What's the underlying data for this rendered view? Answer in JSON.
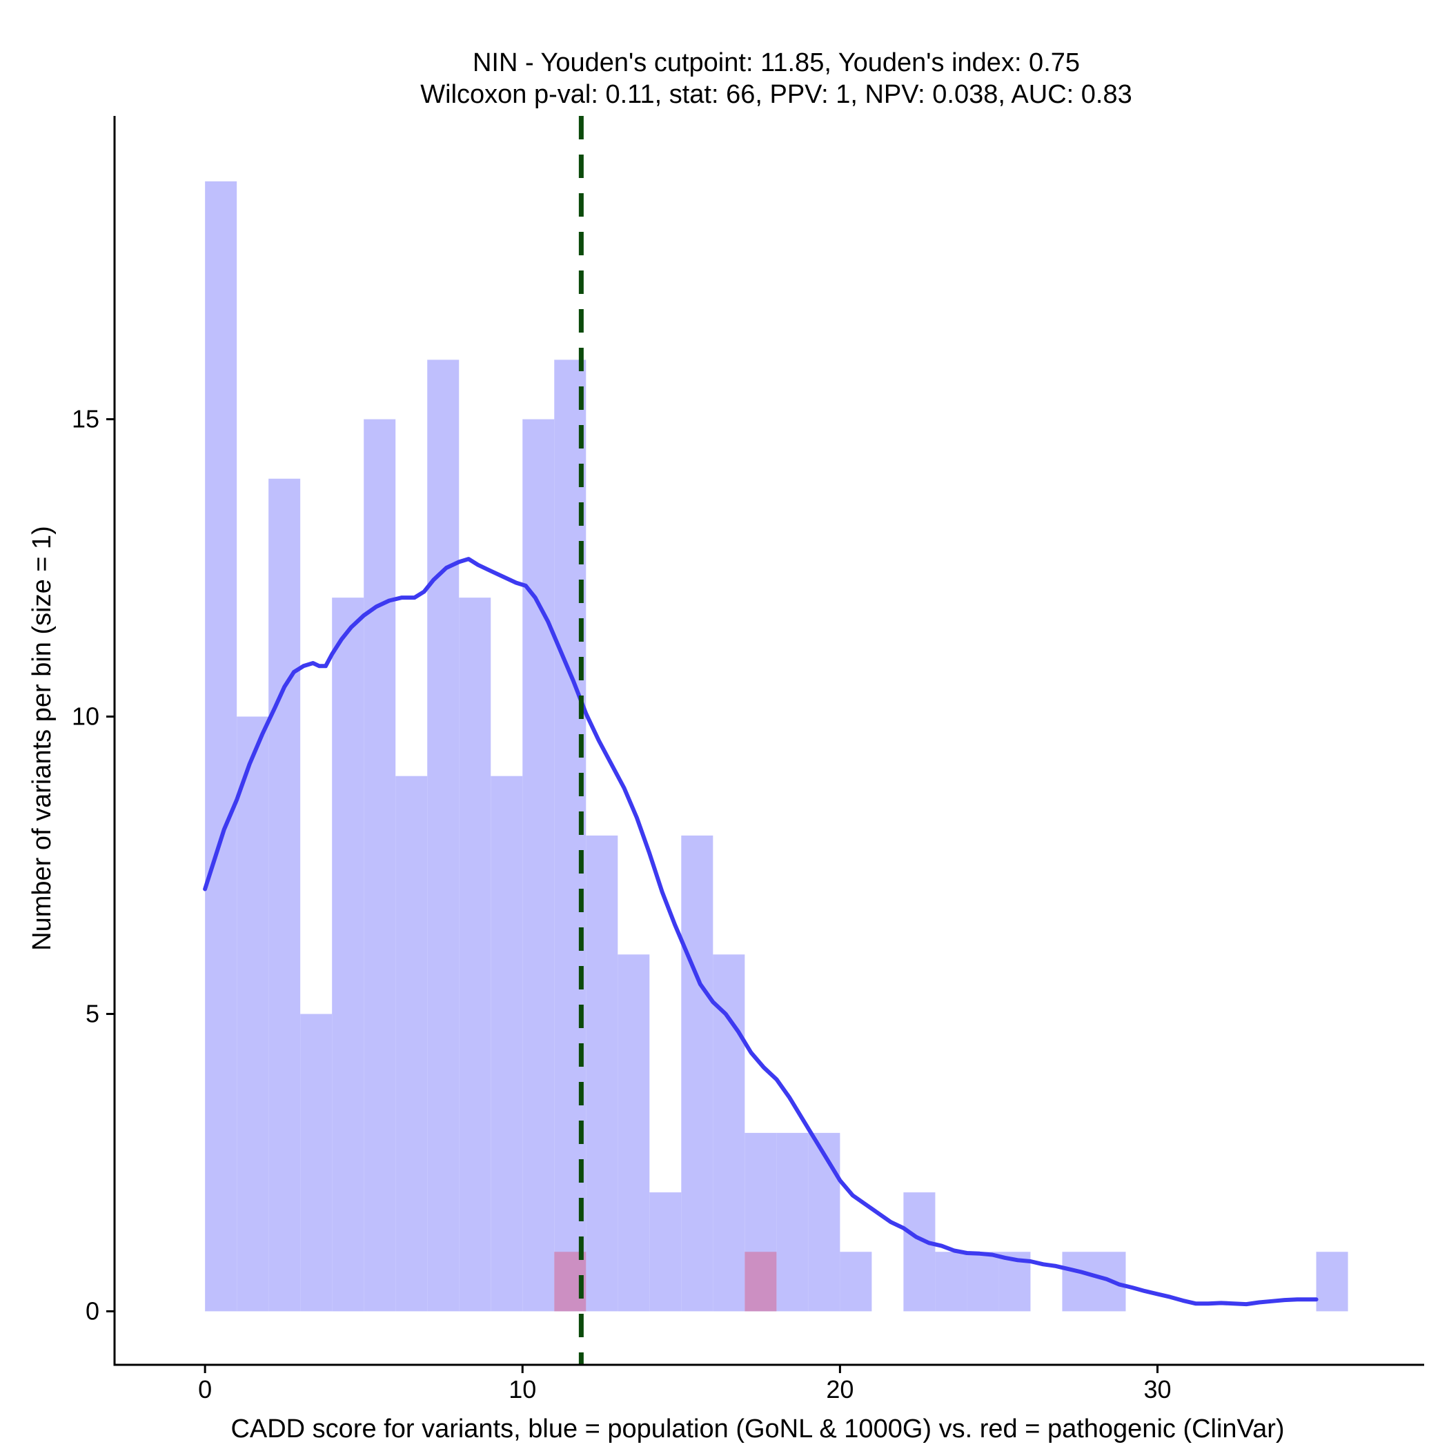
{
  "chart_data": {
    "type": "bar",
    "title_line1": "NIN - Youden's cutpoint: 11.85, Youden's index: 0.75",
    "title_line2": "Wilcoxon p-val: 0.11, stat: 66, PPV: 1, NPV: 0.038, AUC: 0.83",
    "xlabel": "CADD score for variants, blue = population (GoNL & 1000G) vs. red = pathogenic (ClinVar)",
    "ylabel": "Number of variants per bin (size = 1)",
    "xlim": [
      -2.85,
      38.4
    ],
    "ylim": [
      -0.9,
      20.1
    ],
    "x_ticks": [
      0,
      10,
      20,
      30
    ],
    "y_ticks": [
      0,
      5,
      10,
      15
    ],
    "bin_size": 1,
    "cutpoint": 11.85,
    "series": [
      {
        "name": "population (GoNL & 1000G)",
        "color": "#bfbffd",
        "bins": [
          {
            "x": 0,
            "count": 19
          },
          {
            "x": 1,
            "count": 10
          },
          {
            "x": 2,
            "count": 14
          },
          {
            "x": 3,
            "count": 5
          },
          {
            "x": 4,
            "count": 12
          },
          {
            "x": 5,
            "count": 15
          },
          {
            "x": 6,
            "count": 9
          },
          {
            "x": 7,
            "count": 16
          },
          {
            "x": 8,
            "count": 12
          },
          {
            "x": 9,
            "count": 9
          },
          {
            "x": 10,
            "count": 15
          },
          {
            "x": 11,
            "count": 16
          },
          {
            "x": 12,
            "count": 8
          },
          {
            "x": 13,
            "count": 6
          },
          {
            "x": 14,
            "count": 2
          },
          {
            "x": 15,
            "count": 8
          },
          {
            "x": 16,
            "count": 6
          },
          {
            "x": 17,
            "count": 3
          },
          {
            "x": 18,
            "count": 3
          },
          {
            "x": 19,
            "count": 3
          },
          {
            "x": 20,
            "count": 1
          },
          {
            "x": 22,
            "count": 2
          },
          {
            "x": 23,
            "count": 1
          },
          {
            "x": 24,
            "count": 1
          },
          {
            "x": 25,
            "count": 1
          },
          {
            "x": 27,
            "count": 1
          },
          {
            "x": 28,
            "count": 1
          },
          {
            "x": 35,
            "count": 1
          }
        ]
      },
      {
        "name": "pathogenic (ClinVar)",
        "color": "#cc8fc2",
        "bins": [
          {
            "x": 11,
            "count": 1
          },
          {
            "x": 17,
            "count": 1
          }
        ]
      }
    ],
    "density": {
      "name": "population density",
      "color": "#3d3af0",
      "points": [
        [
          0,
          7.1
        ],
        [
          0.3,
          7.6
        ],
        [
          0.6,
          8.1
        ],
        [
          1.0,
          8.6
        ],
        [
          1.4,
          9.2
        ],
        [
          1.8,
          9.7
        ],
        [
          2.2,
          10.15
        ],
        [
          2.5,
          10.5
        ],
        [
          2.8,
          10.75
        ],
        [
          3.1,
          10.85
        ],
        [
          3.4,
          10.9
        ],
        [
          3.6,
          10.85
        ],
        [
          3.8,
          10.85
        ],
        [
          4.0,
          11.05
        ],
        [
          4.3,
          11.3
        ],
        [
          4.6,
          11.5
        ],
        [
          5.0,
          11.7
        ],
        [
          5.4,
          11.85
        ],
        [
          5.8,
          11.95
        ],
        [
          6.2,
          12.0
        ],
        [
          6.6,
          12.0
        ],
        [
          6.9,
          12.1
        ],
        [
          7.2,
          12.3
        ],
        [
          7.6,
          12.5
        ],
        [
          8.0,
          12.6
        ],
        [
          8.3,
          12.65
        ],
        [
          8.6,
          12.55
        ],
        [
          9.0,
          12.45
        ],
        [
          9.4,
          12.35
        ],
        [
          9.8,
          12.25
        ],
        [
          10.1,
          12.2
        ],
        [
          10.4,
          12.0
        ],
        [
          10.8,
          11.6
        ],
        [
          11.2,
          11.1
        ],
        [
          11.6,
          10.6
        ],
        [
          12.0,
          10.05
        ],
        [
          12.4,
          9.6
        ],
        [
          12.8,
          9.2
        ],
        [
          13.2,
          8.8
        ],
        [
          13.6,
          8.3
        ],
        [
          14.0,
          7.7
        ],
        [
          14.4,
          7.05
        ],
        [
          14.8,
          6.5
        ],
        [
          15.2,
          6.0
        ],
        [
          15.6,
          5.5
        ],
        [
          16.0,
          5.2
        ],
        [
          16.4,
          5.0
        ],
        [
          16.8,
          4.7
        ],
        [
          17.2,
          4.35
        ],
        [
          17.6,
          4.1
        ],
        [
          18.0,
          3.9
        ],
        [
          18.4,
          3.6
        ],
        [
          18.8,
          3.25
        ],
        [
          19.2,
          2.9
        ],
        [
          19.6,
          2.55
        ],
        [
          20.0,
          2.2
        ],
        [
          20.4,
          1.95
        ],
        [
          20.8,
          1.8
        ],
        [
          21.2,
          1.65
        ],
        [
          21.6,
          1.5
        ],
        [
          22.0,
          1.4
        ],
        [
          22.4,
          1.25
        ],
        [
          22.8,
          1.15
        ],
        [
          23.2,
          1.1
        ],
        [
          23.6,
          1.02
        ],
        [
          24.0,
          0.98
        ],
        [
          24.4,
          0.97
        ],
        [
          24.8,
          0.95
        ],
        [
          25.2,
          0.9
        ],
        [
          25.6,
          0.86
        ],
        [
          26.0,
          0.84
        ],
        [
          26.4,
          0.79
        ],
        [
          26.8,
          0.76
        ],
        [
          27.2,
          0.71
        ],
        [
          27.6,
          0.66
        ],
        [
          28.0,
          0.6
        ],
        [
          28.4,
          0.54
        ],
        [
          28.8,
          0.45
        ],
        [
          29.2,
          0.4
        ],
        [
          29.6,
          0.34
        ],
        [
          30.0,
          0.29
        ],
        [
          30.4,
          0.24
        ],
        [
          30.8,
          0.18
        ],
        [
          31.2,
          0.13
        ],
        [
          31.6,
          0.13
        ],
        [
          32.0,
          0.14
        ],
        [
          32.4,
          0.13
        ],
        [
          32.8,
          0.12
        ],
        [
          33.2,
          0.15
        ],
        [
          33.6,
          0.17
        ],
        [
          34.0,
          0.19
        ],
        [
          34.4,
          0.2
        ],
        [
          34.8,
          0.2
        ],
        [
          35.0,
          0.2
        ]
      ]
    },
    "cutpoint_color": "#0b4a0b"
  }
}
